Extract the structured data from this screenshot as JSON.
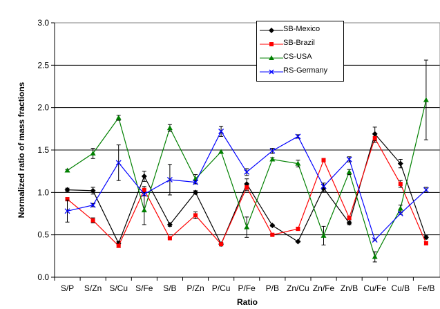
{
  "chart_data": {
    "type": "line",
    "title": "",
    "xlabel": "Ratio",
    "ylabel": "Normalized ratio of mass fractions",
    "ylim": [
      0,
      3
    ],
    "yticks": [
      "0.0",
      "0.5",
      "1.0",
      "1.5",
      "2.0",
      "2.5",
      "3.0"
    ],
    "grid": "horizontal",
    "legend_position": "top-right",
    "categories": [
      "S/P",
      "S/Zn",
      "S/Cu",
      "S/Fe",
      "S/B",
      "P/Zn",
      "P/Cu",
      "P/Fe",
      "P/B",
      "Zn/Cu",
      "Zn/Fe",
      "Zn/B",
      "Cu/Fe",
      "Cu/B",
      "Fe/B"
    ],
    "series": [
      {
        "name": "SB-Mexico",
        "color": "#000000",
        "marker": "diamond",
        "values": [
          1.03,
          1.02,
          0.4,
          1.19,
          0.62,
          1.0,
          0.39,
          1.1,
          0.61,
          0.42,
          1.05,
          0.64,
          1.69,
          1.34,
          0.47
        ],
        "errors": [
          0.02,
          0.04,
          0.02,
          0.06,
          0.02,
          0.02,
          0.02,
          0.06,
          0.01,
          0.01,
          0.04,
          0.02,
          0.08,
          0.05,
          0.02
        ]
      },
      {
        "name": "SB-Brazil",
        "color": "#ff0000",
        "marker": "square",
        "values": [
          0.92,
          0.67,
          0.37,
          1.03,
          0.46,
          0.73,
          0.39,
          1.06,
          0.5,
          0.57,
          1.38,
          0.7,
          1.64,
          1.1,
          0.4
        ],
        "errors": [
          0.02,
          0.03,
          0.02,
          0.04,
          0.01,
          0.04,
          0.02,
          0.04,
          0.01,
          0.02,
          0.02,
          0.02,
          0.05,
          0.04,
          0.02
        ]
      },
      {
        "name": "CS-USA",
        "color": "#008000",
        "marker": "triangle",
        "values": [
          1.26,
          1.46,
          1.88,
          0.79,
          1.76,
          1.16,
          1.48,
          0.59,
          1.39,
          1.34,
          0.49,
          1.24,
          0.24,
          0.81,
          2.09
        ],
        "errors": [
          0.01,
          0.06,
          0.03,
          0.17,
          0.04,
          0.05,
          0.02,
          0.12,
          0.02,
          0.04,
          0.11,
          0.03,
          0.06,
          0.04,
          0.47
        ]
      },
      {
        "name": "RS-Germany",
        "color": "#0000ff",
        "marker": "cross",
        "values": [
          0.78,
          0.85,
          1.35,
          0.98,
          1.15,
          1.12,
          1.72,
          1.24,
          1.49,
          1.66,
          1.07,
          1.39,
          0.44,
          0.75,
          1.03
        ],
        "errors": [
          0.13,
          0.02,
          0.21,
          0.02,
          0.18,
          0.02,
          0.06,
          0.04,
          0.03,
          0.02,
          0.04,
          0.03,
          0.01,
          0.01,
          0.03
        ]
      }
    ]
  }
}
